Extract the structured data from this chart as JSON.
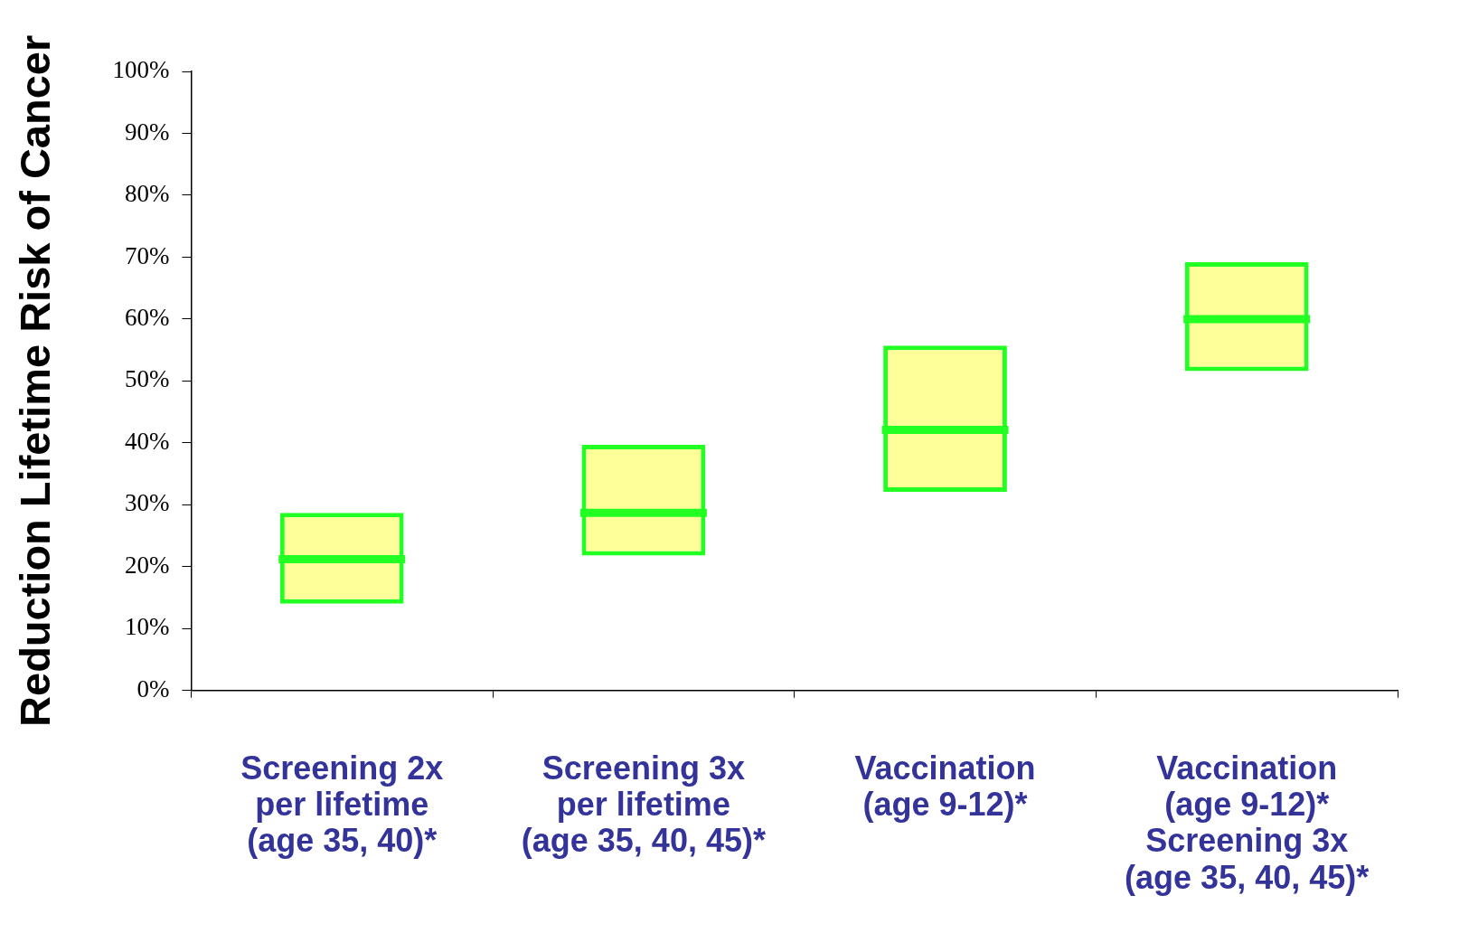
{
  "chart_data": {
    "type": "box",
    "ylabel": "Reduction Lifetime Risk of Cancer",
    "categories": [
      "Screening 2x\nper lifetime\n(age 35, 40)*",
      "Screening 3x\nper lifetime\n(age 35, 40, 45)*",
      "Vaccination\n(age 9-12)*",
      "Vaccination\n(age 9-12)*\nScreening 3x\n(age 35, 40, 45)*"
    ],
    "boxes": [
      {
        "low": 14,
        "q1": 14,
        "median": 21.2,
        "q3": 28.7,
        "high": 28.7
      },
      {
        "low": 21.8,
        "q1": 21.8,
        "median": 28.7,
        "q3": 39.7,
        "high": 39.7
      },
      {
        "low": 32.1,
        "q1": 32.1,
        "median": 42.1,
        "q3": 55.7,
        "high": 55.7
      },
      {
        "low": 51.6,
        "q1": 51.6,
        "median": 60,
        "q3": 69.2,
        "high": 69.2
      }
    ],
    "color": "#22ff22",
    "ylim": [
      0,
      100
    ],
    "yticks": [
      {
        "value": 0,
        "label": "0%"
      },
      {
        "value": 10,
        "label": "10%"
      },
      {
        "value": 20,
        "label": "20%"
      },
      {
        "value": 30,
        "label": "30%"
      },
      {
        "value": 40,
        "label": "40%"
      },
      {
        "value": 50,
        "label": "50%"
      },
      {
        "value": 60,
        "label": "60%"
      },
      {
        "value": 70,
        "label": "70%"
      },
      {
        "value": 80,
        "label": "80%"
      },
      {
        "value": 90,
        "label": "90%"
      },
      {
        "value": 100,
        "label": "100%"
      }
    ],
    "grid": false,
    "legend": false
  }
}
